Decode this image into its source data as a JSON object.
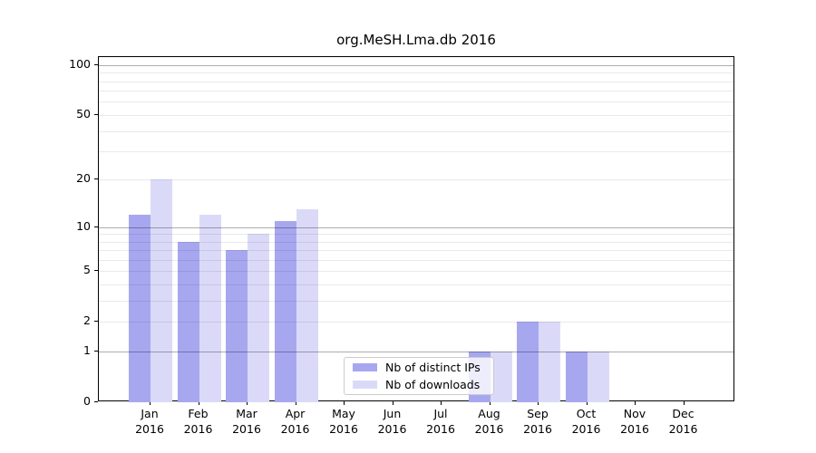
{
  "chart_data": {
    "type": "bar",
    "title": "org.MeSH.Lma.db 2016",
    "categories": [
      "Jan",
      "Feb",
      "Mar",
      "Apr",
      "May",
      "Jun",
      "Jul",
      "Aug",
      "Sep",
      "Oct",
      "Nov",
      "Dec"
    ],
    "category_year": "2016",
    "series": [
      {
        "name": "Nb of distinct IPs",
        "color": "#a7a7f0",
        "values": [
          12,
          8,
          7,
          11,
          0,
          0,
          0,
          1,
          2,
          1,
          0,
          0
        ]
      },
      {
        "name": "Nb of downloads",
        "color": "#dadaf8",
        "values": [
          20,
          12,
          9,
          13,
          0,
          0,
          0,
          1,
          2,
          1,
          0,
          0
        ]
      }
    ],
    "yscale": "log1p",
    "ylim": [
      0,
      112
    ],
    "yticks": [
      0,
      1,
      2,
      5,
      10,
      20,
      50,
      100
    ],
    "major_gridlines": [
      1,
      10,
      100
    ],
    "minor_gridlines": [
      2,
      3,
      4,
      5,
      6,
      7,
      8,
      9,
      20,
      30,
      40,
      50,
      60,
      70,
      80,
      90
    ],
    "grid": true,
    "legend_position": "lower center"
  }
}
